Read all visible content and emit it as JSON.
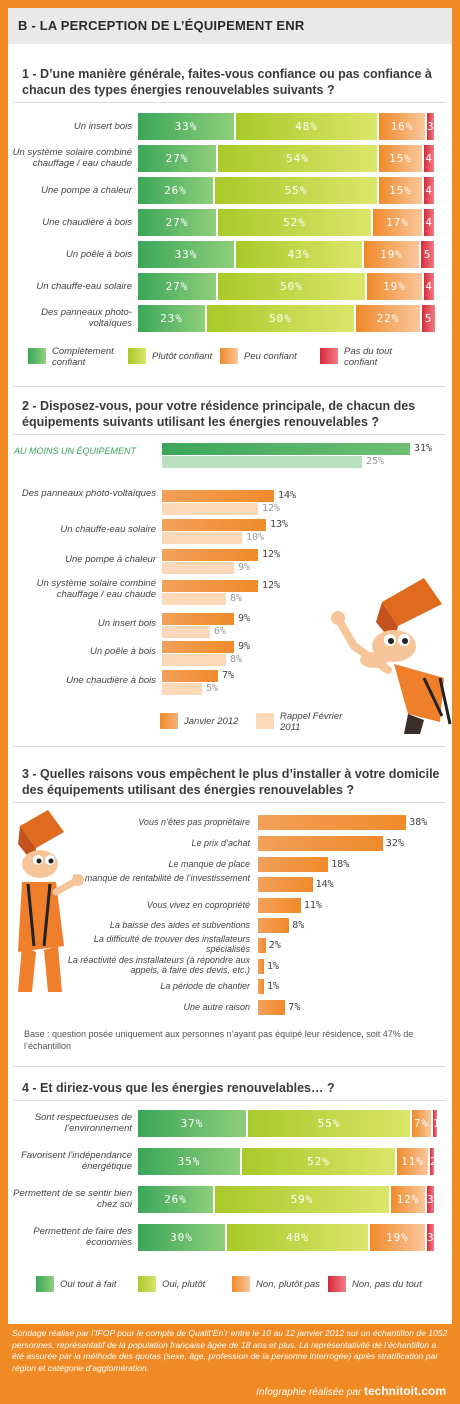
{
  "header": {
    "title": "B - LA PERCEPTION DE L’ÉQUIPEMENT ENR"
  },
  "colors": {
    "green": "#55b04b",
    "lime": "#bcd135",
    "orange": "#f5a15a",
    "red": "#e7444e",
    "frame": "#f08a24"
  },
  "q1": {
    "title": "1 - D’une manière générale, faites-vous confiance ou pas confiance à chacun des types énergies renouvelables suivants ?",
    "legend": [
      "Complètement confiant",
      "Plutôt confiant",
      "Peu confiant",
      "Pas du tout confiant"
    ]
  },
  "q2": {
    "title": "2 - Disposez-vous, pour votre résidence principale, de chacun des équipements suivants utilisant les énergies renouvelables ?",
    "legend": [
      "Janvier 2012",
      "Rappel Février 2011"
    ]
  },
  "q3": {
    "title": "3 - Quelles raisons vous empêchent le plus d’installer à votre domicile des équipements utilisant des énergies renouvelables ?",
    "note": "Base : question posée uniquement aux personnes n’ayant pas équipé leur résidence, soit 47% de l’échantillon"
  },
  "q4": {
    "title": "4 - Et diriez-vous que les énergies renouvelables… ?",
    "legend": [
      "Oui tout à fait",
      "Oui, plutôt",
      "Non, plutôt pas",
      "Non, pas du tout"
    ]
  },
  "footer": {
    "text": "Sondage réalisé par l’IFOP pour le compte de Qualit’En’r entre le 10 au 12 janvier 2012 sur un échantillon de 1052 personnes, représentatif de la population française âgée de 18 ans et plus. La représentativité de l’échantillon a été assurée par la méthode des quotas (sexe, âge, profession de la personne interrogée) après stratification par région et catégorie d’agglomération.",
    "credit": "Infographie réalisée par",
    "brand": "technitoit.com"
  },
  "chart_data": [
    {
      "type": "bar",
      "stacked": true,
      "title": "1 - D’une manière générale, faites-vous confiance ou pas confiance à chacun des types énergies renouvelables suivants ?",
      "categories": [
        "Un insert bois",
        "Un système solaire combiné chauffage / eau chaude",
        "Une pompe à chaleur",
        "Une chaudière à bois",
        "Un poêle à bois",
        "Un chauffe-eau solaire",
        "Des panneaux photo-voltaïques"
      ],
      "series": [
        {
          "name": "Complètement confiant",
          "values": [
            33,
            27,
            26,
            27,
            33,
            27,
            23
          ]
        },
        {
          "name": "Plutôt confiant",
          "values": [
            48,
            54,
            55,
            52,
            43,
            50,
            50
          ]
        },
        {
          "name": "Peu confiant",
          "values": [
            16,
            15,
            15,
            17,
            19,
            19,
            22
          ]
        },
        {
          "name": "Pas du tout confiant",
          "values": [
            3,
            4,
            4,
            4,
            5,
            4,
            5
          ]
        }
      ],
      "unit": "%"
    },
    {
      "type": "bar",
      "title": "2 - Disposez-vous, pour votre résidence principale, de chacun des équipements suivants utilisant les énergies renouvelables ?",
      "categories": [
        "AU MOINS UN ÉQUIPEMENT",
        "Des panneaux photo-voltaïques",
        "Un chauffe-eau solaire",
        "Une pompe à chaleur",
        "Un système solaire combiné chauffage / eau chaude",
        "Un insert bois",
        "Un poêle à bois",
        "Une chaudière à bois"
      ],
      "series": [
        {
          "name": "Janvier 2012",
          "values": [
            31,
            14,
            13,
            12,
            12,
            9,
            9,
            7
          ]
        },
        {
          "name": "Rappel Février 2011",
          "values": [
            25,
            12,
            10,
            9,
            8,
            6,
            8,
            5
          ]
        }
      ],
      "unit": "%"
    },
    {
      "type": "bar",
      "title": "3 - Quelles raisons vous empêchent le plus d’installer à votre domicile des équipements utilisant des énergies renouvelables ?",
      "categories": [
        "Vous n’êtes pas propriétaire",
        "Le prix d’achat",
        "Le manque de place",
        "Le manque de rentabilité de l’investissement",
        "Vous vivez en copropriété",
        "La baisse des aides et subventions",
        "La difficulté de trouver des installateurs spécialisés",
        "La réactivité des installateurs (à répondre aux appels, à faire des devis, etc.)",
        "La période de chantier",
        "Une autre raison"
      ],
      "values": [
        38,
        32,
        18,
        14,
        11,
        8,
        2,
        1,
        1,
        7
      ],
      "unit": "%"
    },
    {
      "type": "bar",
      "stacked": true,
      "title": "4 - Et diriez-vous que les énergies renouvelables… ?",
      "categories": [
        "Sont respectueuses de l’environnement",
        "Favorisent l’indépendance énergétique",
        "Permettent de se sentir bien chez soi",
        "Permettent de faire des économies"
      ],
      "series": [
        {
          "name": "Oui tout à fait",
          "values": [
            37,
            35,
            26,
            30
          ]
        },
        {
          "name": "Oui, plutôt",
          "values": [
            55,
            52,
            59,
            48
          ]
        },
        {
          "name": "Non, plutôt pas",
          "values": [
            7,
            11,
            12,
            19
          ]
        },
        {
          "name": "Non, pas du tout",
          "values": [
            1,
            2,
            3,
            3
          ]
        }
      ],
      "unit": "%"
    }
  ]
}
